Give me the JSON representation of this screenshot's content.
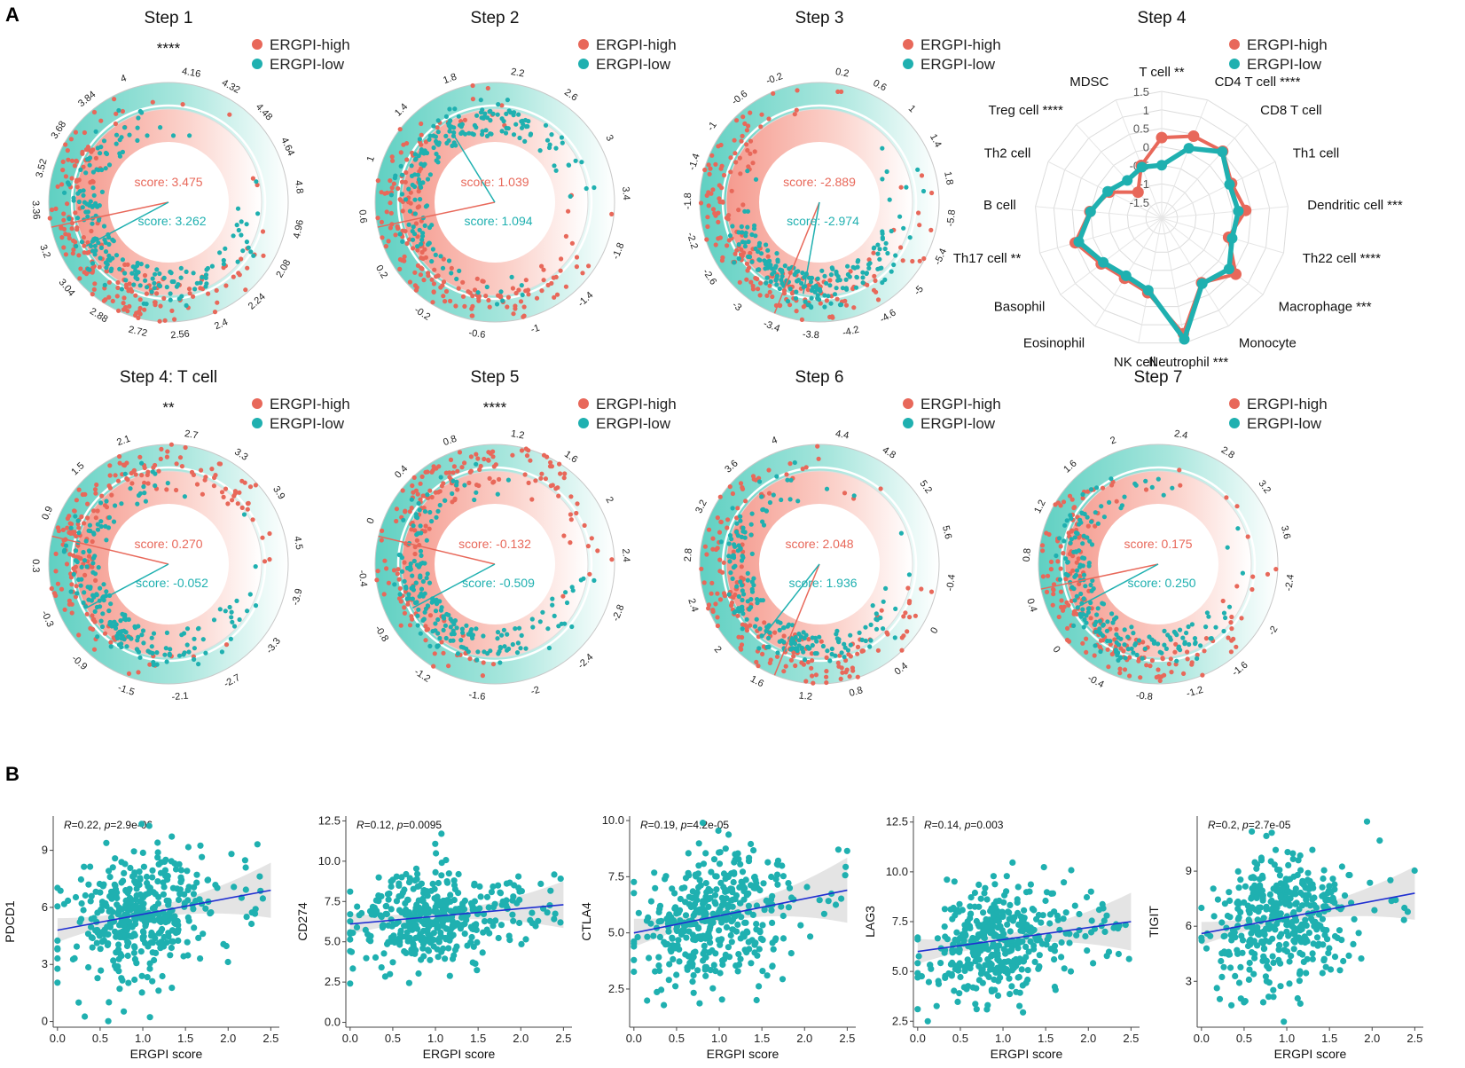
{
  "colors": {
    "high": "#e8685a",
    "low": "#1fb0b0",
    "fit": "#1f2fd1",
    "ring_teal": "#7fd8cc",
    "ring_pink": "#f7b8ae"
  },
  "panel_labels": [
    "A",
    "B"
  ],
  "legend": {
    "high": "ERGPI-high",
    "low": "ERGPI-low"
  },
  "chart_data": [
    {
      "type": "circular-scatter",
      "title": "Step 1",
      "significance": "****",
      "high_score": "score: 3.475",
      "low_score": "score: 3.262",
      "high_val": 3.475,
      "low_val": 3.262,
      "ticks": [
        "4.16",
        "4.32",
        "4.48",
        "4.64",
        "4.8",
        "4.96",
        "2.08",
        "2.24",
        "2.4",
        "2.56",
        "2.72",
        "2.88",
        "3.04",
        "3.2",
        "3.36",
        "3.52",
        "3.68",
        "3.84",
        "4"
      ],
      "high_cluster": [
        "left",
        "bottom"
      ],
      "low_cluster": [
        "left",
        "bottom"
      ]
    },
    {
      "type": "circular-scatter",
      "title": "Step 2",
      "significance": "",
      "high_score": "score: 1.039",
      "low_score": "score: 1.094",
      "high_val": 1.039,
      "low_val": 1.094,
      "ticks": [
        "2.2",
        "2.6",
        "3",
        "3.4",
        "-1.8",
        "-1.4",
        "-1",
        "-0.6",
        "-0.2",
        "0.2",
        "0.6",
        "1",
        "1.4",
        "1.8"
      ],
      "high_cluster": [
        "left",
        "bottom"
      ],
      "low_cluster": [
        "top",
        "left"
      ]
    },
    {
      "type": "circular-scatter",
      "title": "Step 3",
      "significance": "",
      "high_score": "score: -2.889",
      "low_score": "score: -2.974",
      "high_val": -2.889,
      "low_val": -2.974,
      "ticks": [
        "0.2",
        "0.6",
        "1",
        "1.4",
        "1.8",
        "-5.8",
        "-5.4",
        "-5",
        "-4.6",
        "-4.2",
        "-3.8",
        "-3.4",
        "-3",
        "-2.6",
        "-2.2",
        "-1.8",
        "-1.4",
        "-1",
        "-0.6",
        "-0.2"
      ],
      "high_cluster": [
        "bottom",
        "left"
      ],
      "low_cluster": [
        "bottom"
      ]
    },
    {
      "type": "radar",
      "title": "Step 4",
      "labels": [
        "T cell",
        "CD4 T cell",
        "CD8 T cell",
        "Th1 cell",
        "Dendritic cell",
        "Th22 cell",
        "Macrophage",
        "Monocyte",
        "Neutrophil",
        "NK cell",
        "Eosinophil",
        "Basophil",
        "Th17 cell",
        "B cell",
        "Th2 cell",
        "Treg cell",
        "MDSC"
      ],
      "sig": [
        "**",
        "****",
        "",
        "",
        "***",
        "****",
        "***",
        "",
        "***",
        "",
        "",
        "",
        "**",
        "",
        "",
        "****",
        ""
      ],
      "range": [
        -1.5,
        1.5
      ],
      "rticks": [
        "1.5",
        "1",
        "0.5",
        "0",
        "-0.5",
        "-1",
        "-1.5"
      ],
      "series": [
        {
          "name": "ERGPI-high",
          "values": [
            0.25,
            0.45,
            0.52,
            0.18,
            0.35,
            -0.05,
            0.58,
            0.12,
            1.25,
            0.12,
            -0.02,
            0.12,
            0.5,
            0.02,
            -0.35,
            -0.98,
            -0.4
          ]
        },
        {
          "name": "ERGPI-low",
          "values": [
            -0.5,
            0.1,
            0.5,
            0.12,
            0.15,
            0.05,
            0.35,
            0.15,
            1.4,
            0.05,
            -0.1,
            0.05,
            0.4,
            0.0,
            -0.3,
            -0.55,
            -0.45
          ]
        }
      ]
    },
    {
      "type": "circular-scatter",
      "title": "Step 4: T cell",
      "significance": "**",
      "high_score": "score: 0.270",
      "low_score": "score: -0.052",
      "high_val": 0.27,
      "low_val": -0.052,
      "ticks": [
        "2.7",
        "3.3",
        "3.9",
        "4.5",
        "-3.9",
        "-3.3",
        "-2.7",
        "-2.1",
        "-1.5",
        "-0.9",
        "-0.3",
        "0.3",
        "0.9",
        "1.5",
        "2.1"
      ],
      "high_cluster": [
        "left",
        "top"
      ],
      "low_cluster": [
        "left",
        "bottom"
      ]
    },
    {
      "type": "circular-scatter",
      "title": "Step 5",
      "significance": "****",
      "high_score": "score: -0.132",
      "low_score": "score: -0.509",
      "high_val": -0.132,
      "low_val": -0.509,
      "ticks": [
        "1.2",
        "1.6",
        "2",
        "2.4",
        "-2.8",
        "-2.4",
        "-2",
        "-1.6",
        "-1.2",
        "-0.8",
        "-0.4",
        "0",
        "0.4",
        "0.8"
      ],
      "high_cluster": [
        "left",
        "top"
      ],
      "low_cluster": [
        "left",
        "bottom"
      ]
    },
    {
      "type": "circular-scatter",
      "title": "Step 6",
      "significance": "",
      "high_score": "score: 2.048",
      "low_score": "score: 1.936",
      "high_val": 2.048,
      "low_val": 1.936,
      "ticks": [
        "4.4",
        "4.8",
        "5.2",
        "5.6",
        "-0.4",
        "0",
        "0.4",
        "0.8",
        "1.2",
        "1.6",
        "2",
        "2.4",
        "2.8",
        "3.2",
        "3.6",
        "4"
      ],
      "high_cluster": [
        "bottom",
        "left"
      ],
      "low_cluster": [
        "bottom",
        "left"
      ]
    },
    {
      "type": "circular-scatter",
      "title": "Step 7",
      "significance": "",
      "high_score": "score: 0.175",
      "low_score": "score: 0.250",
      "high_val": 0.175,
      "low_val": 0.25,
      "ticks": [
        "2.4",
        "2.8",
        "3.2",
        "3.6",
        "-2.4",
        "-2",
        "-1.6",
        "-1.2",
        "-0.8",
        "-0.4",
        "0",
        "0.4",
        "0.8",
        "1.2",
        "1.6",
        "2"
      ],
      "high_cluster": [
        "left",
        "bottom"
      ],
      "low_cluster": [
        "left",
        "bottom"
      ]
    },
    {
      "type": "scatter",
      "ylabel": "PDCD1",
      "xlabel": "ERGPI score",
      "stat": "R=0.22, p=2.9e-06",
      "R": "R",
      "stat_rest": "=0.22, ",
      "p": "p",
      "stat_p": "=2.9e-06",
      "xlim": [
        -0.05,
        2.6
      ],
      "ylim": [
        -0.3,
        10.8
      ],
      "xticks": [
        "0.0",
        "0.5",
        "1.0",
        "1.5",
        "2.0",
        "2.5"
      ],
      "xtick_vals": [
        0,
        0.5,
        1,
        1.5,
        2,
        2.5
      ],
      "yticks": [
        "0",
        "3",
        "6",
        "9"
      ],
      "ytick_vals": [
        0,
        3,
        6,
        9
      ],
      "fit": [
        [
          0,
          4.8
        ],
        [
          2.5,
          6.9
        ]
      ],
      "ymean": 5.6,
      "ysd": 1.6
    },
    {
      "type": "scatter",
      "ylabel": "CD274",
      "xlabel": "ERGPI score",
      "stat": "R=0.12, p=0.0095",
      "R": "R",
      "stat_rest": "=0.12, ",
      "p": "p",
      "stat_p": "=0.0095",
      "xlim": [
        -0.05,
        2.6
      ],
      "ylim": [
        -0.3,
        12.8
      ],
      "xticks": [
        "0.0",
        "0.5",
        "1.0",
        "1.5",
        "2.0",
        "2.5"
      ],
      "xtick_vals": [
        0,
        0.5,
        1,
        1.5,
        2,
        2.5
      ],
      "yticks": [
        "0.0",
        "2.5",
        "5.0",
        "7.5",
        "10.0",
        "12.5"
      ],
      "ytick_vals": [
        0,
        2.5,
        5,
        7.5,
        10,
        12.5
      ],
      "fit": [
        [
          0,
          6.1
        ],
        [
          2.5,
          7.3
        ]
      ],
      "ymean": 6.7,
      "ysd": 1.5
    },
    {
      "type": "scatter",
      "ylabel": "CTLA4",
      "xlabel": "ERGPI score",
      "stat": "R=0.19, p=4.2e-05",
      "R": "R",
      "stat_rest": "=0.19, ",
      "p": "p",
      "stat_p": "=4.2e-05",
      "xlim": [
        -0.05,
        2.6
      ],
      "ylim": [
        0.8,
        10.2
      ],
      "xticks": [
        "0.0",
        "0.5",
        "1.0",
        "1.5",
        "2.0",
        "2.5"
      ],
      "xtick_vals": [
        0,
        0.5,
        1,
        1.5,
        2,
        2.5
      ],
      "yticks": [
        "2.5",
        "5.0",
        "7.5",
        "10.0"
      ],
      "ytick_vals": [
        2.5,
        5,
        7.5,
        10
      ],
      "fit": [
        [
          0,
          5.0
        ],
        [
          2.5,
          6.9
        ]
      ],
      "ymean": 5.8,
      "ysd": 1.4
    },
    {
      "type": "scatter",
      "ylabel": "LAG3",
      "xlabel": "ERGPI score",
      "stat": "R=0.14, p=0.003",
      "R": "R",
      "stat_rest": "=0.14, ",
      "p": "p",
      "stat_p": "=0.003",
      "xlim": [
        -0.05,
        2.6
      ],
      "ylim": [
        2.2,
        12.8
      ],
      "xticks": [
        "0.0",
        "0.5",
        "1.0",
        "1.5",
        "2.0",
        "2.5"
      ],
      "xtick_vals": [
        0,
        0.5,
        1,
        1.5,
        2,
        2.5
      ],
      "yticks": [
        "2.5",
        "5.0",
        "7.5",
        "10.0",
        "12.5"
      ],
      "ytick_vals": [
        2.5,
        5,
        7.5,
        10,
        12.5
      ],
      "fit": [
        [
          0,
          6.0
        ],
        [
          2.5,
          7.5
        ]
      ],
      "ymean": 6.6,
      "ysd": 1.4
    },
    {
      "type": "scatter",
      "ylabel": "TIGIT",
      "xlabel": "ERGPI score",
      "stat": "R=0.2, p=2.7e-05",
      "R": "R",
      "stat_rest": "=0.2, ",
      "p": "p",
      "stat_p": "=2.7e-05",
      "xlim": [
        -0.05,
        2.6
      ],
      "ylim": [
        0.5,
        12.0
      ],
      "xticks": [
        "0.0",
        "0.5",
        "1.0",
        "1.5",
        "2.0",
        "2.5"
      ],
      "xtick_vals": [
        0,
        0.5,
        1,
        1.5,
        2,
        2.5
      ],
      "yticks": [
        "3",
        "6",
        "9"
      ],
      "ytick_vals": [
        3,
        6,
        9
      ],
      "fit": [
        [
          0,
          5.6
        ],
        [
          2.5,
          7.8
        ]
      ],
      "ymean": 6.3,
      "ysd": 1.7
    }
  ]
}
